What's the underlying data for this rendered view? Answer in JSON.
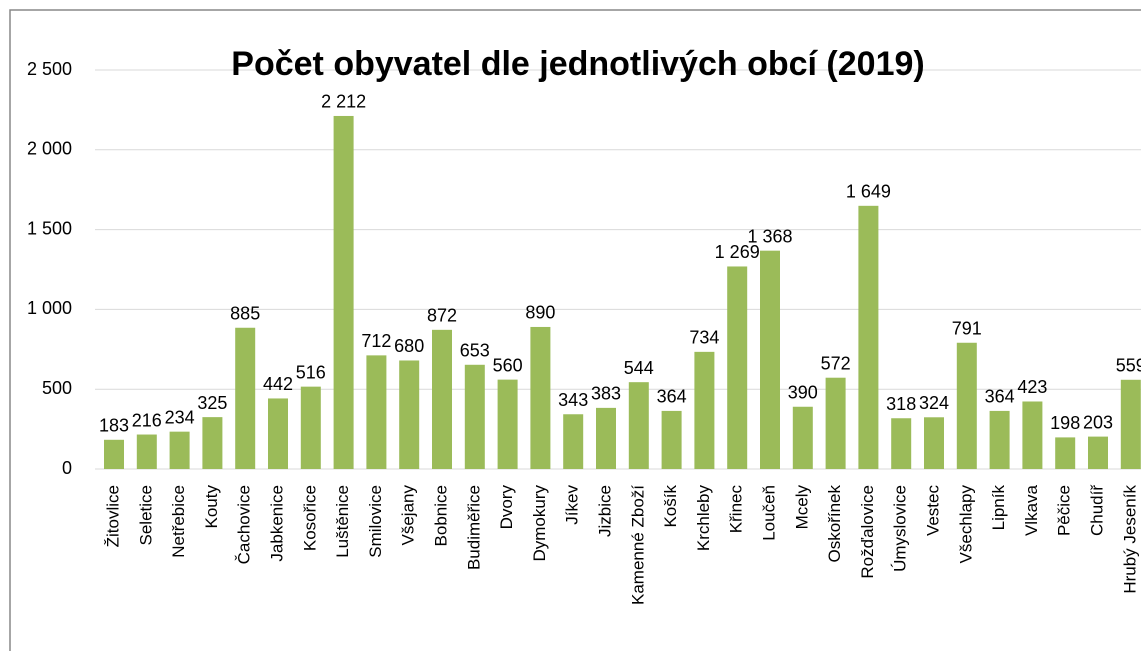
{
  "chart_data": {
    "type": "bar",
    "title": "Počet obyvatel dle jednotlivých obcí (2019)",
    "categories": [
      "Žitovlice",
      "Seletice",
      "Netřebice",
      "Kouty",
      "Čachovice",
      "Jabkenice",
      "Kosořice",
      "Luštěnice",
      "Smilovice",
      "Všejany",
      "Bobnice",
      "Budiměřice",
      "Dvory",
      "Dymokury",
      "Jíkev",
      "Jizbice",
      "Kamenné Zboží",
      "Košík",
      "Krchleby",
      "Křinec",
      "Loučeň",
      "Mcely",
      "Oskořínek",
      "Rožďalovice",
      "Úmyslovice",
      "Vestec",
      "Všechlapy",
      "Lipník",
      "Vlkava",
      "Pěčice",
      "Chudíř",
      "Hrubý Jeseník"
    ],
    "values": [
      183,
      216,
      234,
      325,
      885,
      442,
      516,
      2212,
      712,
      680,
      872,
      653,
      560,
      890,
      343,
      383,
      544,
      364,
      734,
      1269,
      1368,
      390,
      572,
      1649,
      318,
      324,
      791,
      364,
      423,
      198,
      203,
      559
    ],
    "value_labels": [
      "183",
      "216",
      "234",
      "325",
      "885",
      "442",
      "516",
      "2 212",
      "712",
      "680",
      "872",
      "653",
      "560",
      "890",
      "343",
      "383",
      "544",
      "364",
      "734",
      "1 269",
      "1 368",
      "390",
      "572",
      "1 649",
      "318",
      "324",
      "791",
      "364",
      "423",
      "198",
      "203",
      "559"
    ],
    "color": "#9bbb59",
    "ylim": [
      0,
      2500
    ],
    "yticks": [
      0,
      500,
      {
        "value": 1000,
        "label": "1 000"
      },
      {
        "value": 1500,
        "label": "1 500"
      },
      {
        "value": 2000,
        "label": "2 000"
      },
      {
        "value": 2500,
        "label": "2 500"
      }
    ],
    "grid": true
  }
}
